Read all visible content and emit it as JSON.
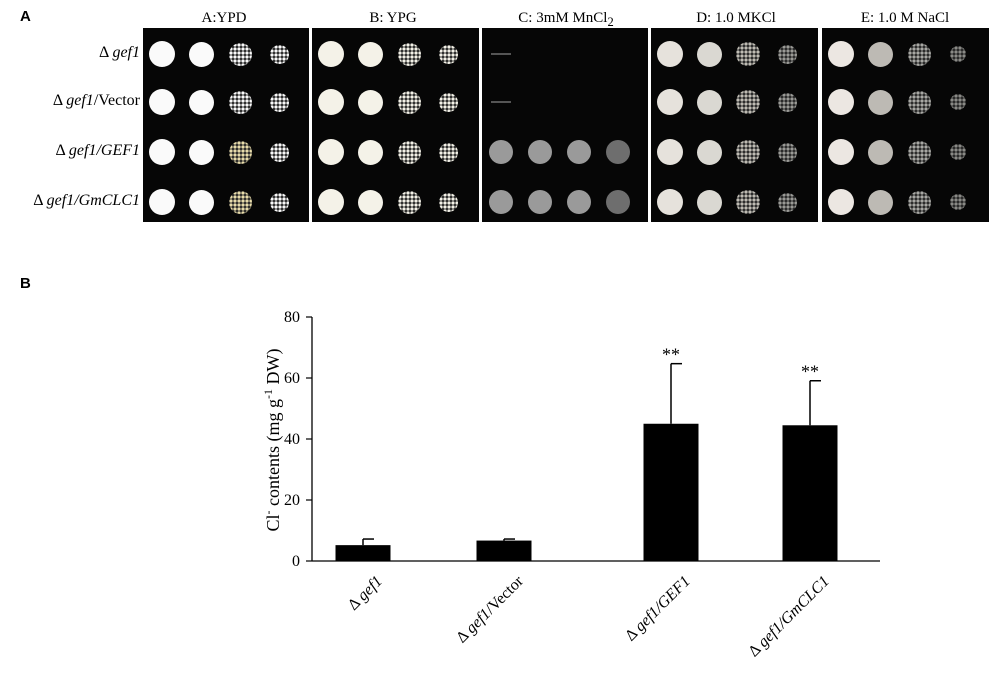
{
  "panel_a": {
    "letter": "A",
    "conditions": [
      {
        "pre": "A:YPD",
        "sub": ""
      },
      {
        "pre": "B: YPG",
        "sub": ""
      },
      {
        "pre": "C: 3mM MnCl",
        "sub": "2"
      },
      {
        "pre": "D: 1.0 MKCl",
        "sub": ""
      },
      {
        "pre": "E: 1.0 M NaCl",
        "sub": ""
      }
    ],
    "strains": [
      {
        "delta": "Δ",
        "gene": "gef1",
        "suffix": "",
        "italic_suffix": false
      },
      {
        "delta": "Δ",
        "gene": "gef1",
        "suffix": "/Vector",
        "italic_suffix": false
      },
      {
        "delta": "Δ",
        "gene": "gef1",
        "suffix": "/GEF1",
        "italic_suffix": true
      },
      {
        "delta": "Δ",
        "gene": "gef1",
        "suffix": "/GmCLC1",
        "italic_suffix": true
      }
    ]
  },
  "panel_b": {
    "letter": "B"
  },
  "chart_data": {
    "type": "bar",
    "ylabel_pre": "Cl",
    "ylabel_sup": "-",
    "ylabel_mid": " contents (mg g",
    "ylabel_sup2": "-1",
    "ylabel_post": " DW)",
    "ylim": [
      0,
      80
    ],
    "yticks": [
      0,
      20,
      40,
      60,
      80
    ],
    "categories": [
      "Δ gef1",
      "Δ gef1/Vector",
      "Δ gef1/GEF1",
      "Δ gef1/GmCLC1"
    ],
    "values": [
      5.2,
      6.7,
      45,
      44.5
    ],
    "errors": [
      2,
      0.5,
      19.7,
      14.6
    ],
    "significance": [
      "",
      "",
      "**",
      "**"
    ],
    "color": "#000000"
  }
}
